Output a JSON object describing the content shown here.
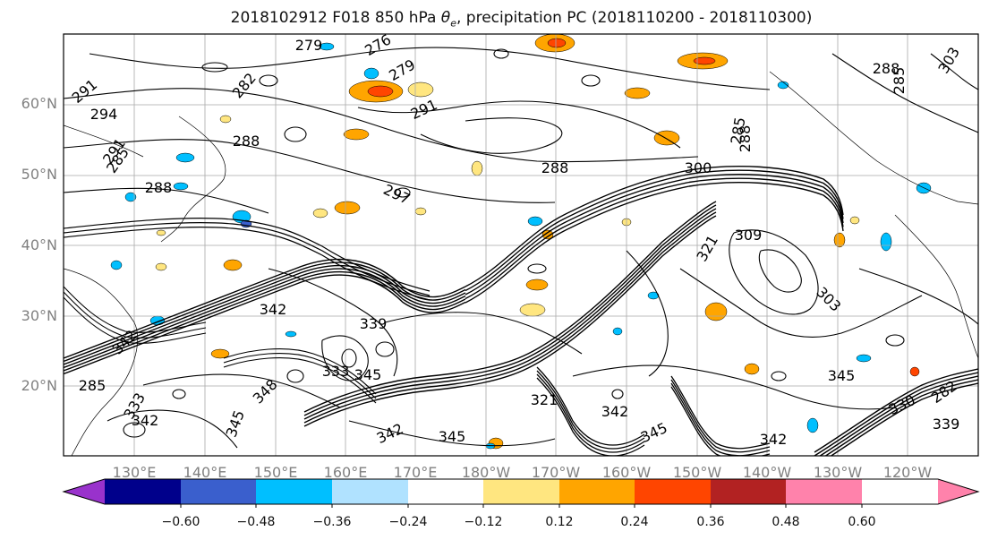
{
  "figure": {
    "title_parts": [
      "2018102912 F018 850 hPa ",
      "θ",
      "e",
      ", precipitation PC (2018110200 - 2018110300)"
    ]
  },
  "map": {
    "lat_labels": [
      "60°N",
      "50°N",
      "40°N",
      "30°N",
      "20°N"
    ],
    "lon_labels": [
      "130°E",
      "140°E",
      "150°E",
      "160°E",
      "170°E",
      "180°W",
      "170°W",
      "160°W",
      "150°W",
      "140°W",
      "130°W",
      "120°W"
    ],
    "contour_labels": [
      "279",
      "276",
      "279",
      "282",
      "285",
      "291",
      "294",
      "291",
      "288",
      "288",
      "297",
      "291",
      "285",
      "288",
      "288",
      "300",
      "285",
      "309",
      "303",
      "321",
      "342",
      "339",
      "342",
      "345",
      "348",
      "333",
      "345",
      "333",
      "342",
      "345",
      "342",
      "342",
      "321",
      "342",
      "345",
      "330",
      "345",
      "339",
      "282",
      "303",
      "288",
      "285"
    ]
  },
  "colorbar": {
    "tick_labels": [
      "−0.60",
      "−0.48",
      "−0.36",
      "−0.24",
      "−0.12",
      "0.12",
      "0.24",
      "0.36",
      "0.48",
      "0.60"
    ],
    "colors": [
      "#9932cc",
      "#00008b",
      "#3a5fcd",
      "#00bfff",
      "#b0e2ff",
      "#ffffff",
      "#ffe680",
      "#ffa500",
      "#ff4500",
      "#b22222",
      "#ff82ab"
    ]
  },
  "style": {
    "contour_color": "#000000",
    "grid_color": "#a9a9a9",
    "axis_label_color": "#808080"
  }
}
